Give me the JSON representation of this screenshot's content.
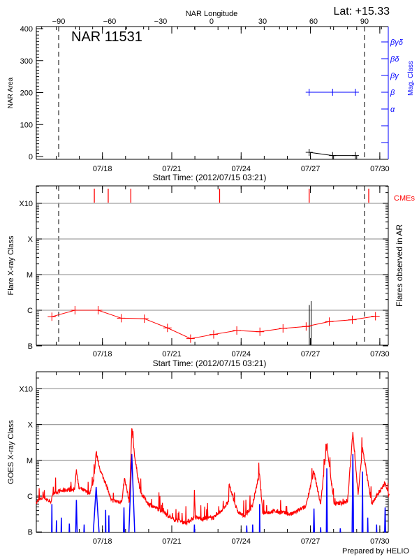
{
  "colors": {
    "area": "#000000",
    "mag_class": "#0000ff",
    "flare": "#ff0000",
    "cme": "#ff0000",
    "goes_long": "#ff0000",
    "goes_short": "#0000ff",
    "grid": "#a0a0a0"
  },
  "header": {
    "lat_label": "Lat: +15.33",
    "region_label": "NAR 11531"
  },
  "chart_data": [
    {
      "type": "line",
      "panel": "top",
      "x_top_label": "NAR Longitude",
      "x_top_ticks": [
        "-90",
        "-60",
        "-30",
        "0",
        "30",
        "60",
        "90"
      ],
      "x_label": "Start Time: (2012/07/15 03:21)",
      "x_range": [
        "2012-07-15T03:21",
        "2012-07-30T10:00"
      ],
      "x_tick_labels": [
        "07/18",
        "07/21",
        "07/24",
        "07/27",
        "07/30"
      ],
      "ylabel": "NAR Area",
      "ylim": [
        0,
        400
      ],
      "y_tick_labels": [
        "0",
        "100",
        "200",
        "300",
        "400"
      ],
      "y2label": "Mag. Class",
      "y2_tick_labels": [
        "α",
        "β",
        "βγ",
        "βδ",
        "βγδ"
      ],
      "limb_longitudes": [
        -90,
        90
      ],
      "series": [
        {
          "key": "area",
          "x": [
            "2012-07-26T22:40",
            "2012-07-27T23:00",
            "2012-07-28T22:40"
          ],
          "values": [
            13,
            3,
            3
          ]
        },
        {
          "key": "mag_class",
          "x": [
            "2012-07-26T22:40",
            "2012-07-27T23:00",
            "2012-07-28T22:40"
          ],
          "values": [
            "β",
            "β",
            "β"
          ]
        }
      ]
    },
    {
      "type": "line",
      "panel": "middle",
      "ylabel": "Flare X-ray Class",
      "y2label": "Flares observed in AR",
      "cme_label": "CMEs",
      "x_label": "Start Time: (2012/07/15 03:21)",
      "x_tick_labels": [
        "07/18",
        "07/21",
        "07/24",
        "07/27",
        "07/30"
      ],
      "y_scale": "log",
      "y_tick_labels": [
        "B",
        "C",
        "M",
        "X",
        "X10"
      ],
      "grid": true,
      "background_level": {
        "x": [
          "2012-07-15T19:30",
          "2012-07-16T19:30",
          "2012-07-17T19:30",
          "2012-07-18T19:30",
          "2012-07-19T19:30",
          "2012-07-20T19:30",
          "2012-07-21T19:30",
          "2012-07-22T19:30",
          "2012-07-23T19:30",
          "2012-07-24T19:30",
          "2012-07-25T19:30",
          "2012-07-26T19:30",
          "2012-07-27T19:30",
          "2012-07-28T19:30",
          "2012-07-29T19:30"
        ],
        "values": [
          6.6e-07,
          1e-06,
          1e-06,
          6e-07,
          5.8e-07,
          3.2e-07,
          1.6e-07,
          2.1e-07,
          2.7e-07,
          2.5e-07,
          3.1e-07,
          3.5e-07,
          4.8e-07,
          5.4e-07,
          6.8e-07
        ]
      },
      "flares": [
        {
          "t": "2012-07-26T22:50",
          "peak": 1.4e-06
        },
        {
          "t": "2012-07-27T00:40",
          "peak": 1.8e-06
        }
      ],
      "cmes": [
        "2012-07-17T15:35",
        "2012-07-18T06:00",
        "2012-07-19T05:30",
        "2012-07-23T01:40",
        "2012-07-26T22:40",
        "2012-07-29T12:30"
      ]
    },
    {
      "type": "line",
      "panel": "bottom",
      "ylabel": "GOES X-ray Class",
      "x_tick_labels": [
        "07/18",
        "07/21",
        "07/24",
        "07/27",
        "07/30"
      ],
      "y_scale": "log",
      "y_tick_labels": [
        "B",
        "C",
        "M",
        "X",
        "X10"
      ],
      "grid": true,
      "series": [
        {
          "key": "goes_long",
          "points": [
            [
              "2012-07-15T03:21",
              6.9e-07
            ],
            [
              "2012-07-15T11:00",
              9.3e-07
            ],
            [
              "2012-07-15T18:00",
              6.9e-07
            ],
            [
              "2012-07-15T22:00",
              1.26e-06
            ],
            [
              "2012-07-16T10:00",
              1.5e-06
            ],
            [
              "2012-07-16T19:00",
              1.5e-06
            ],
            [
              "2012-07-16T21:00",
              5.6e-06
            ],
            [
              "2012-07-16T23:30",
              1.7e-06
            ],
            [
              "2012-07-17T10:30",
              1.2e-06
            ],
            [
              "2012-07-17T15:00",
              2.7e-06
            ],
            [
              "2012-07-17T17:30",
              1.7e-05
            ],
            [
              "2012-07-17T22:00",
              4.9e-06
            ],
            [
              "2012-07-18T03:30",
              2.3e-06
            ],
            [
              "2012-07-18T09:00",
              7.6e-07
            ],
            [
              "2012-07-18T20:00",
              6.9e-07
            ],
            [
              "2012-07-18T23:00",
              3.2e-06
            ],
            [
              "2012-07-19T04:00",
              6.9e-07
            ],
            [
              "2012-07-19T06:30",
              7.8e-05
            ],
            [
              "2012-07-19T10:00",
              1e-05
            ],
            [
              "2012-07-19T15:30",
              1.26e-06
            ],
            [
              "2012-07-20T00:00",
              6e-07
            ],
            [
              "2012-07-20T14:00",
              3.8e-07
            ],
            [
              "2012-07-21T01:00",
              2.3e-07
            ],
            [
              "2012-07-21T15:00",
              1.8e-07
            ],
            [
              "2012-07-21T23:00",
              2.5e-07
            ],
            [
              "2012-07-21T23:30",
              1.5e-06
            ],
            [
              "2012-07-22T00:30",
              2.5e-07
            ],
            [
              "2012-07-22T10:30",
              2.3e-07
            ],
            [
              "2012-07-22T21:30",
              2.6e-07
            ],
            [
              "2012-07-23T11:00",
              6.9e-07
            ],
            [
              "2012-07-23T11:30",
              2.1e-06
            ],
            [
              "2012-07-23T20:00",
              3.8e-07
            ],
            [
              "2012-07-24T03:00",
              2.7e-07
            ],
            [
              "2012-07-24T11:30",
              5.1e-07
            ],
            [
              "2012-07-24T19:00",
              4.2e-06
            ],
            [
              "2012-07-24T22:30",
              3.3e-07
            ],
            [
              "2012-07-25T11:00",
              3.8e-07
            ],
            [
              "2012-07-26T04:00",
              3.1e-07
            ],
            [
              "2012-07-26T19:00",
              5.1e-07
            ],
            [
              "2012-07-27T03:30",
              4.9e-06
            ],
            [
              "2012-07-27T10:30",
              6e-07
            ],
            [
              "2012-07-27T17:00",
              2.75e-05
            ],
            [
              "2012-07-28T00:30",
              6e-07
            ],
            [
              "2012-07-28T14:30",
              6.9e-07
            ],
            [
              "2012-07-28T20:00",
              6.2e-05
            ],
            [
              "2012-07-29T01:30",
              1.1e-06
            ],
            [
              "2012-07-29T06:00",
              2.3e-05
            ],
            [
              "2012-07-29T15:30",
              6e-07
            ],
            [
              "2012-07-30T05:30",
              2.3e-06
            ],
            [
              "2012-07-30T10:00",
              9.3e-07
            ]
          ]
        },
        {
          "key": "goes_short",
          "events": [
            {
              "t": "2012-07-15T19:30",
              "peak": 6e-07,
              "dur_h": 0.5
            },
            {
              "t": "2012-07-16T00:15",
              "peak": 2.1e-07,
              "dur_h": 0.5
            },
            {
              "t": "2012-07-16T05:20",
              "peak": 2.5e-07,
              "dur_h": 0.5
            },
            {
              "t": "2012-07-16T13:40",
              "peak": 1.7e-07,
              "dur_h": 0.5
            },
            {
              "t": "2012-07-16T21:00",
              "peak": 7.8e-07,
              "dur_h": 1.5
            },
            {
              "t": "2012-07-17T05:00",
              "peak": 1.6e-07,
              "dur_h": 0.5
            },
            {
              "t": "2012-07-17T17:30",
              "peak": 1.8e-06,
              "dur_h": 6
            },
            {
              "t": "2012-07-18T03:20",
              "peak": 4.1e-07,
              "dur_h": 0.5
            },
            {
              "t": "2012-07-18T06:40",
              "peak": 2.9e-07,
              "dur_h": 0.5
            },
            {
              "t": "2012-07-18T22:20",
              "peak": 4.8e-07,
              "dur_h": 1
            },
            {
              "t": "2012-07-19T06:30",
              "peak": 1.5e-05,
              "dur_h": 6
            },
            {
              "t": "2012-07-21T23:30",
              "peak": 1.6e-07,
              "dur_h": 0.5
            },
            {
              "t": "2012-07-24T05:50",
              "peak": 1.5e-07,
              "dur_h": 0.5
            },
            {
              "t": "2012-07-24T12:00",
              "peak": 1.6e-07,
              "dur_h": 0.5
            },
            {
              "t": "2012-07-24T19:15",
              "peak": 6e-07,
              "dur_h": 0.5
            },
            {
              "t": "2012-07-27T03:40",
              "peak": 4.5e-07,
              "dur_h": 1
            },
            {
              "t": "2012-07-27T10:35",
              "peak": 1.35e-07,
              "dur_h": 0.5
            },
            {
              "t": "2012-07-27T17:00",
              "peak": 6e-06,
              "dur_h": 1
            },
            {
              "t": "2012-07-28T07:00",
              "peak": 1.25e-07,
              "dur_h": 0.5
            },
            {
              "t": "2012-07-28T20:00",
              "peak": 1.5e-05,
              "dur_h": 1.5
            },
            {
              "t": "2012-07-29T06:00",
              "peak": 4.9e-06,
              "dur_h": 1
            },
            {
              "t": "2012-07-29T11:30",
              "peak": 2.5e-07,
              "dur_h": 0.5
            },
            {
              "t": "2012-07-29T20:40",
              "peak": 1.6e-07,
              "dur_h": 0.5
            },
            {
              "t": "2012-07-30T05:30",
              "peak": 4.8e-07,
              "dur_h": 1
            }
          ]
        }
      ]
    }
  ],
  "footer": {
    "credit": "Prepared by HELIO"
  }
}
